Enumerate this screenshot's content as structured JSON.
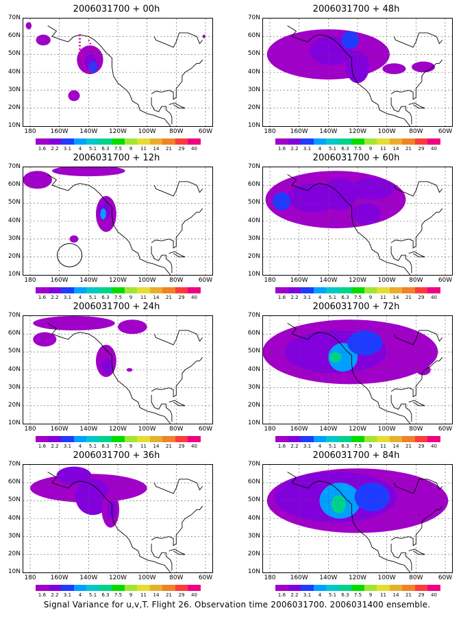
{
  "panels": [
    {
      "title": "2006031700 + 00h",
      "col": 0,
      "row": 0,
      "lead_hours": 0
    },
    {
      "title": "2006031700 + 48h",
      "col": 1,
      "row": 0,
      "lead_hours": 48
    },
    {
      "title": "2006031700 + 12h",
      "col": 0,
      "row": 1,
      "lead_hours": 12
    },
    {
      "title": "2006031700 + 60h",
      "col": 1,
      "row": 1,
      "lead_hours": 60
    },
    {
      "title": "2006031700 + 24h",
      "col": 0,
      "row": 2,
      "lead_hours": 24
    },
    {
      "title": "2006031700 + 72h",
      "col": 1,
      "row": 2,
      "lead_hours": 72
    },
    {
      "title": "2006031700 + 36h",
      "col": 0,
      "row": 3,
      "lead_hours": 36
    },
    {
      "title": "2006031700 + 84h",
      "col": 1,
      "row": 3,
      "lead_hours": 84
    }
  ],
  "y_ticks": [
    "70N",
    "60N",
    "50N",
    "40N",
    "30N",
    "20N",
    "10N"
  ],
  "x_ticks": [
    "180",
    "160W",
    "140W",
    "120W",
    "100W",
    "80W",
    "60W"
  ],
  "colorbar": {
    "labels": [
      "1.6",
      "2.2",
      "3.1",
      "4",
      "5.1",
      "6.3",
      "7.5",
      "9",
      "11",
      "14",
      "21",
      "29",
      "40"
    ],
    "colors": [
      "#a000c8",
      "#8200dc",
      "#1e3cff",
      "#00a0ff",
      "#00c8c8",
      "#00d28c",
      "#00dc00",
      "#a0e632",
      "#e6dc32",
      "#e6af2d",
      "#f08228",
      "#fa3c3c",
      "#f00082"
    ]
  },
  "background_fill": "#a000c8",
  "caption": "Signal Variance for u,v,T. Flight 26. Observation time 2006031700. 2006031400 ensemble."
}
